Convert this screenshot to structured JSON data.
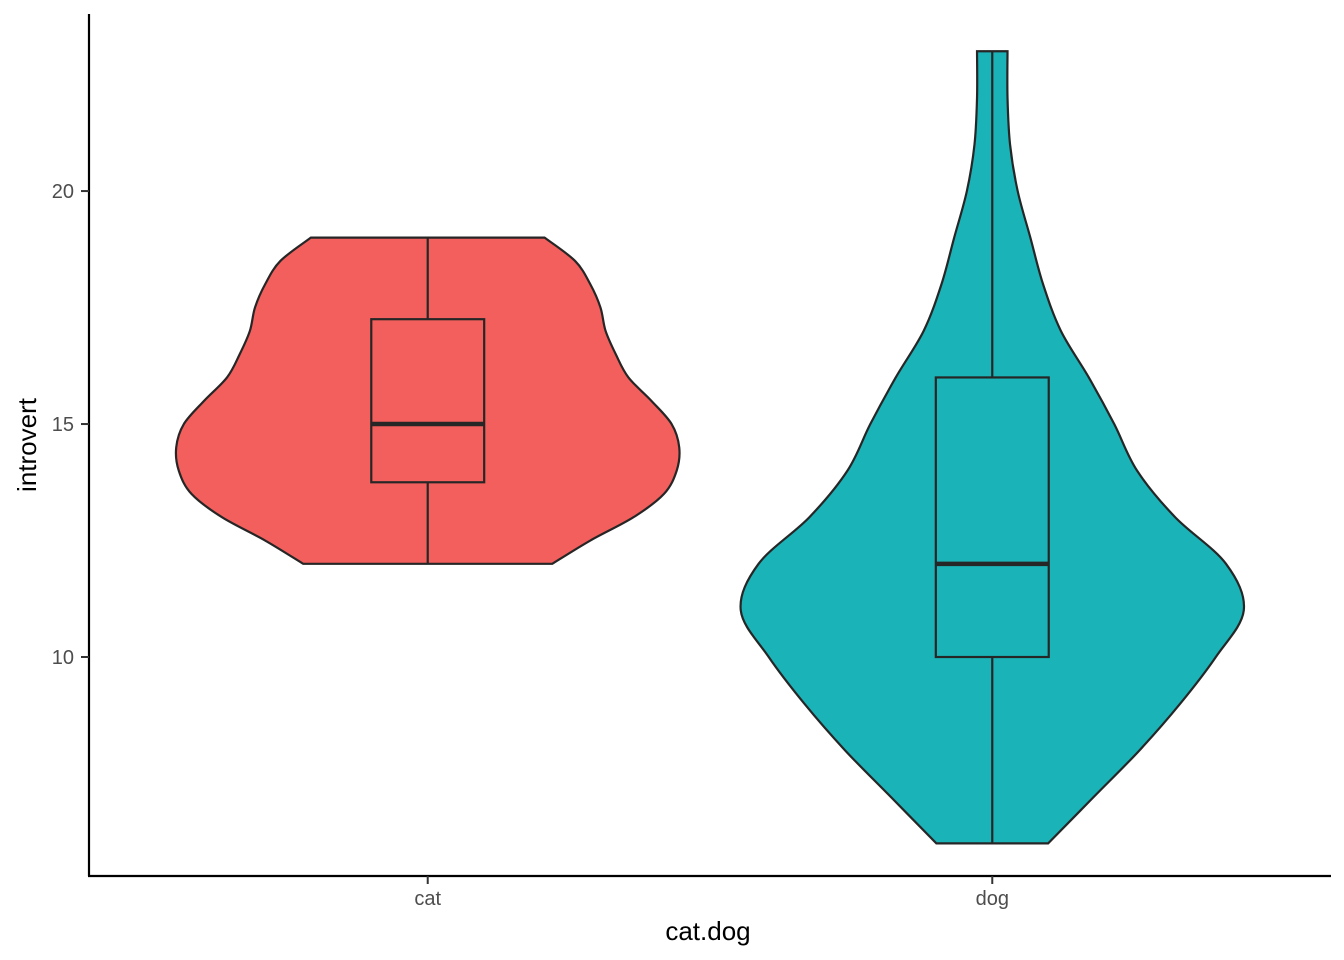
{
  "chart_data": {
    "type": "violin",
    "xlabel": "cat.dog",
    "ylabel": "introvert",
    "ylim": [
      5.3,
      23.8
    ],
    "y_ticks": [
      10,
      15,
      20
    ],
    "categories": [
      "cat",
      "dog"
    ],
    "colors": {
      "cat": "#F35F5C",
      "dog": "#1AB3B8",
      "outline": "#262626"
    },
    "grid": false,
    "legend": "none",
    "series": [
      {
        "category": "cat",
        "box": {
          "min": 12,
          "q1": 13.75,
          "median": 15,
          "q3": 17.25,
          "max": 19
        },
        "density": [
          [
            12.0,
            0.49
          ],
          [
            12.5,
            0.64
          ],
          [
            13.0,
            0.81
          ],
          [
            13.5,
            0.93
          ],
          [
            14.0,
            0.98
          ],
          [
            14.5,
            0.99
          ],
          [
            15.0,
            0.96
          ],
          [
            15.5,
            0.88
          ],
          [
            16.0,
            0.79
          ],
          [
            16.5,
            0.74
          ],
          [
            17.0,
            0.7
          ],
          [
            17.5,
            0.68
          ],
          [
            18.0,
            0.64
          ],
          [
            18.5,
            0.58
          ],
          [
            19.0,
            0.46
          ]
        ]
      },
      {
        "category": "dog",
        "box": {
          "min": 6,
          "q1": 10,
          "median": 12,
          "q3": 16,
          "max": 23
        },
        "density": [
          [
            6.0,
            0.22
          ],
          [
            7.0,
            0.4
          ],
          [
            8.0,
            0.58
          ],
          [
            9.0,
            0.74
          ],
          [
            10.0,
            0.88
          ],
          [
            11.0,
            0.99
          ],
          [
            12.0,
            0.92
          ],
          [
            13.0,
            0.72
          ],
          [
            14.0,
            0.57
          ],
          [
            15.0,
            0.48
          ],
          [
            16.0,
            0.38
          ],
          [
            17.0,
            0.27
          ],
          [
            18.0,
            0.2
          ],
          [
            19.0,
            0.15
          ],
          [
            20.0,
            0.1
          ],
          [
            21.0,
            0.07
          ],
          [
            22.0,
            0.06
          ],
          [
            23.0,
            0.06
          ]
        ]
      }
    ]
  }
}
